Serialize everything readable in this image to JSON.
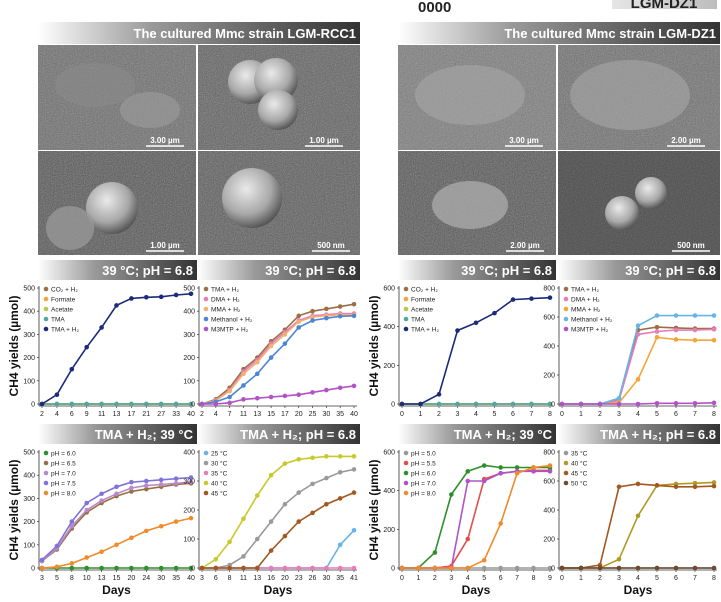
{
  "top_fragment_left": "0000",
  "top_fragment_right": "LGM-DZ1",
  "colors": {
    "navy": "#1c2a7a",
    "tan": "#d3a46a",
    "orange_light": "#f4a53a",
    "olive": "#bcc84a",
    "teal": "#4ea8a0",
    "brown": "#9b6f45",
    "pink": "#e87bb8",
    "peach": "#f2b173",
    "blue": "#4d86d2",
    "purple": "#b053c8",
    "green": "#2f8f2a",
    "lavender": "#7f73d8",
    "orange": "#f08a2a",
    "yellow": "#c9c92a",
    "grey": "#9a9a9a",
    "olive_dark": "#b09a25",
    "sienna": "#a2581f",
    "brick": "#6d4a2f",
    "red": "#e0504a",
    "light_blue": "#66b4e8"
  },
  "sem_panels": [
    {
      "title": "The cultured Mmc strain LGM-RCC1",
      "scale_bars": [
        "3.00 µm",
        "1.00 µm",
        "1.00 µm",
        "500 nm"
      ]
    },
    {
      "title": "The cultured Mmc strain LGM-DZ1",
      "scale_bars": [
        "3.00 µm",
        "2.00 µm",
        "2.00 µm",
        "500 nm"
      ]
    }
  ],
  "chart_data": [
    {
      "type": "line",
      "title": "39 °C; pH = 6.8",
      "categories": [
        "2",
        "4",
        "6",
        "9",
        "11",
        "13",
        "17",
        "21",
        "27",
        "33",
        "40"
      ],
      "ylim": [
        0,
        500
      ],
      "yticks": [
        0,
        100,
        200,
        300,
        400,
        500
      ],
      "ylabel": "CH4 yields (µmol)",
      "xlabel": "",
      "legend": "top-left",
      "series": [
        {
          "name": "CO₂ + H₂",
          "color": "#9b6f45",
          "values": [
            0,
            0,
            0,
            0,
            0,
            0,
            0,
            0,
            0,
            0,
            0
          ]
        },
        {
          "name": "Formate",
          "color": "#f4a53a",
          "values": [
            0,
            0,
            0,
            0,
            0,
            0,
            0,
            0,
            0,
            0,
            0
          ]
        },
        {
          "name": "Acetate",
          "color": "#bcc84a",
          "values": [
            0,
            0,
            0,
            0,
            0,
            0,
            0,
            0,
            0,
            0,
            0
          ]
        },
        {
          "name": "TMA",
          "color": "#4ea8a0",
          "values": [
            0,
            0,
            0,
            0,
            0,
            0,
            0,
            0,
            0,
            0,
            0
          ]
        },
        {
          "name": "TMA + H₂",
          "color": "#1c2a7a",
          "values": [
            0,
            40,
            150,
            245,
            330,
            425,
            455,
            460,
            462,
            470,
            475
          ]
        }
      ]
    },
    {
      "type": "line",
      "title": "39 °C; pH = 6.8",
      "categories": [
        "2",
        "4",
        "7",
        "11",
        "13",
        "15",
        "17",
        "20",
        "25",
        "30",
        "35",
        "40"
      ],
      "ylim": [
        0,
        500
      ],
      "yticks": [
        0,
        100,
        200,
        300,
        400,
        500
      ],
      "ylabel": "",
      "xlabel": "",
      "legend": "top-left",
      "series": [
        {
          "name": "TMA + H₂",
          "color": "#9b6f45",
          "values": [
            0,
            20,
            70,
            150,
            200,
            270,
            320,
            380,
            400,
            410,
            420,
            430
          ]
        },
        {
          "name": "DMA + H₂",
          "color": "#e87bb8",
          "values": [
            0,
            15,
            60,
            140,
            190,
            260,
            310,
            360,
            380,
            385,
            390,
            390
          ]
        },
        {
          "name": "MMA + H₂",
          "color": "#f2b173",
          "values": [
            0,
            15,
            55,
            130,
            180,
            250,
            300,
            355,
            375,
            380,
            385,
            385
          ]
        },
        {
          "name": "Methanol + H₂",
          "color": "#4d86d2",
          "values": [
            0,
            10,
            30,
            80,
            130,
            200,
            260,
            330,
            360,
            370,
            378,
            380
          ]
        },
        {
          "name": "M3MTP + H₂",
          "color": "#b053c8",
          "values": [
            0,
            0,
            5,
            20,
            25,
            30,
            35,
            40,
            50,
            60,
            70,
            78
          ]
        }
      ]
    },
    {
      "type": "line",
      "title": "39 °C; pH = 6.8",
      "categories": [
        "0",
        "1",
        "2",
        "3",
        "4",
        "5",
        "6",
        "7",
        "8"
      ],
      "ylim": [
        0,
        600
      ],
      "yticks": [
        0,
        200,
        400,
        600
      ],
      "ylabel": "CH4 yields (µmol)",
      "xlabel": "",
      "legend": "top-left",
      "series": [
        {
          "name": "CO₂ + H₂",
          "color": "#9b6f45",
          "values": [
            0,
            0,
            0,
            0,
            0,
            0,
            0,
            0,
            0
          ]
        },
        {
          "name": "Formate",
          "color": "#f4a53a",
          "values": [
            0,
            0,
            0,
            0,
            0,
            0,
            0,
            0,
            0
          ]
        },
        {
          "name": "Acetate",
          "color": "#bcc84a",
          "values": [
            0,
            0,
            0,
            0,
            0,
            0,
            0,
            0,
            0
          ]
        },
        {
          "name": "TMA",
          "color": "#4ea8a0",
          "values": [
            0,
            0,
            0,
            0,
            0,
            0,
            0,
            0,
            0
          ]
        },
        {
          "name": "TMA + H₂",
          "color": "#1c2a7a",
          "values": [
            0,
            0,
            50,
            380,
            420,
            470,
            540,
            545,
            550
          ]
        }
      ]
    },
    {
      "type": "line",
      "title": "39 °C; pH = 6.8",
      "categories": [
        "0",
        "1",
        "2",
        "3",
        "4",
        "5",
        "6",
        "7",
        "8"
      ],
      "ylim": [
        0,
        800
      ],
      "yticks": [
        0,
        200,
        400,
        600,
        800
      ],
      "ylabel": "",
      "xlabel": "",
      "legend": "top-left",
      "series": [
        {
          "name": "TMA + H₂",
          "color": "#9b6f45",
          "values": [
            0,
            0,
            0,
            30,
            510,
            530,
            525,
            520,
            520
          ]
        },
        {
          "name": "DMA + H₂",
          "color": "#e87bb8",
          "values": [
            0,
            0,
            0,
            25,
            480,
            500,
            510,
            510,
            515
          ]
        },
        {
          "name": "MMA + H₂",
          "color": "#f4a53a",
          "values": [
            0,
            0,
            0,
            10,
            170,
            460,
            445,
            440,
            440
          ]
        },
        {
          "name": "Methanol + H₂",
          "color": "#66b4e8",
          "values": [
            0,
            0,
            0,
            40,
            540,
            610,
            610,
            610,
            610
          ]
        },
        {
          "name": "M3MTP + H₂",
          "color": "#b053c8",
          "values": [
            0,
            0,
            0,
            0,
            0,
            5,
            5,
            5,
            8
          ]
        }
      ]
    },
    {
      "type": "line",
      "title": "TMA + H₂; 39 °C",
      "categories": [
        "3",
        "5",
        "8",
        "10",
        "13",
        "15",
        "20",
        "24",
        "30",
        "35",
        "40"
      ],
      "ylim": [
        0,
        500
      ],
      "yticks": [
        0,
        100,
        200,
        300,
        400,
        500
      ],
      "ylabel": "CH4 yields (µmol)",
      "xlabel": "Days",
      "legend": "top-left",
      "series": [
        {
          "name": "pH = 6.0",
          "color": "#2f8f2a",
          "values": [
            0,
            0,
            0,
            0,
            0,
            0,
            0,
            0,
            0,
            0,
            0
          ]
        },
        {
          "name": "pH = 6.5",
          "color": "#9b6f45",
          "values": [
            30,
            80,
            170,
            240,
            280,
            310,
            330,
            340,
            350,
            360,
            365
          ]
        },
        {
          "name": "pH = 7.0",
          "color": "#b98ac8",
          "values": [
            30,
            85,
            180,
            250,
            290,
            320,
            345,
            355,
            360,
            365,
            370
          ]
        },
        {
          "name": "pH = 7.5",
          "color": "#7f73d8",
          "values": [
            35,
            95,
            200,
            280,
            320,
            350,
            370,
            375,
            380,
            385,
            390
          ]
        },
        {
          "name": "pH = 8.0",
          "color": "#f08a2a",
          "values": [
            0,
            5,
            20,
            45,
            70,
            100,
            130,
            160,
            180,
            200,
            215
          ]
        }
      ]
    },
    {
      "type": "line",
      "title": "TMA + H₂; pH = 6.8",
      "categories": [
        "3",
        "6",
        "8",
        "11",
        "13",
        "16",
        "20",
        "23",
        "26",
        "30",
        "35",
        "41"
      ],
      "ylim": [
        0,
        400
      ],
      "yticks": [
        0,
        100,
        200,
        300,
        400
      ],
      "ylabel": "",
      "xlabel": "Days",
      "legend": "top-left",
      "series": [
        {
          "name": "25 °C",
          "color": "#66b4e8",
          "values": [
            0,
            0,
            0,
            0,
            0,
            0,
            0,
            0,
            0,
            0,
            80,
            130
          ]
        },
        {
          "name": "30 °C",
          "color": "#9a9a9a",
          "values": [
            0,
            0,
            10,
            40,
            100,
            160,
            220,
            260,
            290,
            310,
            330,
            340
          ]
        },
        {
          "name": "35 °C",
          "color": "#e87bb8",
          "values": [
            0,
            0,
            0,
            0,
            0,
            0,
            0,
            0,
            0,
            0,
            0,
            0
          ]
        },
        {
          "name": "40 °C",
          "color": "#c9c92a",
          "values": [
            0,
            30,
            90,
            170,
            250,
            320,
            360,
            375,
            380,
            385,
            385,
            385
          ]
        },
        {
          "name": "45 °C",
          "color": "#a2581f",
          "values": [
            0,
            0,
            0,
            0,
            0,
            60,
            110,
            160,
            190,
            220,
            240,
            260
          ]
        }
      ]
    },
    {
      "type": "line",
      "title": "TMA + H₂; 39 °C",
      "categories": [
        "0",
        "1",
        "2",
        "3",
        "4",
        "5",
        "6",
        "7",
        "8",
        "9"
      ],
      "ylim": [
        0,
        600
      ],
      "yticks": [
        0,
        200,
        400,
        600
      ],
      "ylabel": "CH4 yields (µmol)",
      "xlabel": "Days",
      "legend": "top-left",
      "series": [
        {
          "name": "pH = 5.0",
          "color": "#9a9a9a",
          "values": [
            0,
            0,
            0,
            0,
            0,
            0,
            0,
            0,
            0,
            0
          ]
        },
        {
          "name": "pH = 5.5",
          "color": "#e0504a",
          "values": [
            0,
            0,
            0,
            10,
            150,
            460,
            490,
            500,
            505,
            505
          ]
        },
        {
          "name": "pH = 6.0",
          "color": "#2f8f2a",
          "values": [
            0,
            0,
            80,
            380,
            500,
            530,
            520,
            520,
            520,
            520
          ]
        },
        {
          "name": "pH = 7.0",
          "color": "#b053c8",
          "values": [
            0,
            0,
            0,
            0,
            450,
            450,
            490,
            500,
            500,
            500
          ]
        },
        {
          "name": "pH = 8.0",
          "color": "#f08a2a",
          "values": [
            0,
            0,
            0,
            0,
            0,
            40,
            230,
            490,
            520,
            530
          ]
        }
      ]
    },
    {
      "type": "line",
      "title": "TMA + H₂; pH = 6.8",
      "categories": [
        "0",
        "1",
        "2",
        "3",
        "4",
        "5",
        "6",
        "7",
        "8"
      ],
      "ylim": [
        0,
        800
      ],
      "yticks": [
        0,
        200,
        400,
        600,
        800
      ],
      "ylabel": "",
      "xlabel": "Days",
      "legend": "top-left",
      "series": [
        {
          "name": "35 °C",
          "color": "#9a9a9a",
          "values": [
            0,
            0,
            0,
            0,
            0,
            0,
            0,
            0,
            0
          ]
        },
        {
          "name": "40 °C",
          "color": "#b09a25",
          "values": [
            0,
            0,
            0,
            60,
            360,
            570,
            580,
            585,
            590
          ]
        },
        {
          "name": "45 °C",
          "color": "#a2581f",
          "values": [
            0,
            0,
            20,
            560,
            580,
            570,
            560,
            560,
            565
          ]
        },
        {
          "name": "50 °C",
          "color": "#6d4a2f",
          "values": [
            0,
            0,
            0,
            0,
            0,
            0,
            0,
            0,
            0
          ]
        }
      ]
    }
  ]
}
